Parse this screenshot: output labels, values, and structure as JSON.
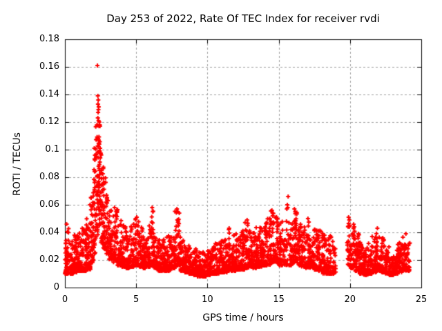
{
  "page": {
    "background": "#ffffff"
  },
  "colors": {
    "marker": "#ff0000",
    "grid": "#9e9e9e",
    "axis": "#000000",
    "text": "#000000"
  },
  "chart_data": {
    "type": "scatter",
    "title": "Day 253 of 2022, Rate Of TEC Index for receiver rvdi",
    "xlabel": "GPS time / hours",
    "ylabel": "ROTI / TECUs",
    "xlim": [
      0,
      25
    ],
    "ylim": [
      0,
      0.18
    ],
    "x_ticks": [
      0,
      5,
      10,
      15,
      20,
      25
    ],
    "x_tick_labels": [
      "0",
      "5",
      "10",
      "15",
      "20",
      "25"
    ],
    "y_ticks": [
      0,
      0.02,
      0.04,
      0.06,
      0.08,
      0.1,
      0.12,
      0.14,
      0.16,
      0.18
    ],
    "y_tick_labels": [
      "0",
      "0.02",
      "0.04",
      "0.06",
      "0.08",
      "0.1",
      "0.12",
      "0.14",
      "0.16",
      "0.18"
    ],
    "grid": true,
    "legend": "none",
    "marker": {
      "shape": "plus",
      "color": "#ff0000",
      "size": 7,
      "stroke": 2
    },
    "series_name": "ROTI",
    "seed": 1337,
    "point_clusters": [
      [
        0.0,
        0.3,
        55,
        0.01,
        0.046,
        2.2
      ],
      [
        0.3,
        0.6,
        48,
        0.01,
        0.04,
        2.2
      ],
      [
        0.6,
        0.9,
        48,
        0.011,
        0.038,
        2.1
      ],
      [
        0.9,
        1.2,
        48,
        0.012,
        0.04,
        2.0
      ],
      [
        1.2,
        1.5,
        48,
        0.012,
        0.044,
        2.0
      ],
      [
        1.5,
        1.8,
        48,
        0.013,
        0.052,
        1.8
      ],
      [
        1.8,
        2.0,
        36,
        0.018,
        0.072,
        1.5
      ],
      [
        2.0,
        2.15,
        30,
        0.024,
        0.098,
        1.3
      ],
      [
        2.15,
        2.3,
        32,
        0.034,
        0.118,
        1.2
      ],
      [
        2.3,
        2.5,
        38,
        0.038,
        0.112,
        1.2
      ],
      [
        2.5,
        2.7,
        34,
        0.032,
        0.1,
        1.3
      ],
      [
        2.7,
        2.9,
        32,
        0.028,
        0.08,
        1.5
      ],
      [
        2.9,
        3.1,
        32,
        0.024,
        0.066,
        1.6
      ],
      [
        3.1,
        3.4,
        38,
        0.02,
        0.056,
        1.7
      ],
      [
        3.4,
        3.7,
        42,
        0.018,
        0.057,
        1.7
      ],
      [
        3.7,
        4.0,
        42,
        0.016,
        0.05,
        1.9
      ],
      [
        4.0,
        4.3,
        42,
        0.015,
        0.046,
        2.0
      ],
      [
        4.3,
        4.6,
        42,
        0.014,
        0.042,
        2.0
      ],
      [
        4.6,
        4.9,
        42,
        0.015,
        0.048,
        1.9
      ],
      [
        4.9,
        5.2,
        42,
        0.016,
        0.051,
        1.8
      ],
      [
        5.2,
        5.5,
        42,
        0.015,
        0.044,
        2.0
      ],
      [
        5.5,
        5.8,
        42,
        0.014,
        0.042,
        2.0
      ],
      [
        5.8,
        6.0,
        30,
        0.015,
        0.045,
        1.9
      ],
      [
        6.0,
        6.25,
        36,
        0.016,
        0.058,
        1.6
      ],
      [
        6.25,
        6.5,
        36,
        0.014,
        0.04,
        2.0
      ],
      [
        6.5,
        6.8,
        42,
        0.012,
        0.035,
        2.1
      ],
      [
        6.8,
        7.1,
        42,
        0.012,
        0.036,
        2.1
      ],
      [
        7.1,
        7.4,
        42,
        0.012,
        0.038,
        2.0
      ],
      [
        7.4,
        7.7,
        42,
        0.014,
        0.042,
        1.9
      ],
      [
        7.7,
        8.1,
        58,
        0.016,
        0.056,
        1.5
      ],
      [
        8.1,
        8.4,
        42,
        0.012,
        0.038,
        2.0
      ],
      [
        8.4,
        8.7,
        42,
        0.011,
        0.032,
        2.2
      ],
      [
        8.7,
        9.0,
        42,
        0.01,
        0.03,
        2.2
      ],
      [
        9.0,
        9.3,
        40,
        0.009,
        0.028,
        2.2
      ],
      [
        9.3,
        9.6,
        40,
        0.008,
        0.026,
        2.2
      ],
      [
        9.6,
        9.9,
        40,
        0.008,
        0.026,
        2.2
      ],
      [
        9.9,
        10.2,
        40,
        0.009,
        0.028,
        2.2
      ],
      [
        10.2,
        10.5,
        40,
        0.01,
        0.03,
        2.2
      ],
      [
        10.5,
        10.8,
        40,
        0.01,
        0.032,
        2.1
      ],
      [
        10.8,
        11.1,
        40,
        0.011,
        0.034,
        2.1
      ],
      [
        11.1,
        11.4,
        40,
        0.011,
        0.036,
        2.0
      ],
      [
        11.4,
        11.7,
        40,
        0.012,
        0.042,
        2.0
      ],
      [
        11.7,
        12.0,
        40,
        0.012,
        0.038,
        2.0
      ],
      [
        12.0,
        12.3,
        40,
        0.013,
        0.04,
        2.0
      ],
      [
        12.3,
        12.6,
        40,
        0.013,
        0.042,
        1.9
      ],
      [
        12.6,
        12.9,
        40,
        0.014,
        0.048,
        1.8
      ],
      [
        12.9,
        13.2,
        40,
        0.015,
        0.046,
        1.8
      ],
      [
        13.2,
        13.5,
        40,
        0.014,
        0.044,
        1.9
      ],
      [
        13.5,
        13.8,
        40,
        0.015,
        0.044,
        1.9
      ],
      [
        13.8,
        14.1,
        40,
        0.016,
        0.048,
        1.8
      ],
      [
        14.1,
        14.4,
        40,
        0.016,
        0.052,
        1.7
      ],
      [
        14.4,
        14.7,
        40,
        0.018,
        0.056,
        1.6
      ],
      [
        14.7,
        15.0,
        40,
        0.018,
        0.052,
        1.7
      ],
      [
        15.0,
        15.3,
        40,
        0.016,
        0.048,
        1.8
      ],
      [
        15.3,
        15.7,
        32,
        0.016,
        0.05,
        1.8
      ],
      [
        15.7,
        16.0,
        36,
        0.016,
        0.048,
        1.8
      ],
      [
        16.0,
        16.3,
        40,
        0.018,
        0.056,
        1.6
      ],
      [
        16.3,
        16.6,
        40,
        0.016,
        0.048,
        1.8
      ],
      [
        16.6,
        16.9,
        40,
        0.015,
        0.046,
        1.8
      ],
      [
        16.9,
        17.2,
        40,
        0.014,
        0.048,
        1.8
      ],
      [
        17.2,
        17.5,
        40,
        0.014,
        0.045,
        1.9
      ],
      [
        17.5,
        17.8,
        40,
        0.013,
        0.044,
        1.9
      ],
      [
        17.8,
        18.1,
        40,
        0.012,
        0.042,
        1.9
      ],
      [
        18.1,
        18.4,
        40,
        0.01,
        0.04,
        2.0
      ],
      [
        18.4,
        18.7,
        40,
        0.01,
        0.038,
        2.0
      ],
      [
        18.7,
        19.0,
        30,
        0.01,
        0.035,
        2.0
      ],
      [
        19.8,
        20.05,
        30,
        0.016,
        0.05,
        1.5
      ],
      [
        20.05,
        20.35,
        38,
        0.014,
        0.046,
        1.8
      ],
      [
        20.35,
        20.65,
        40,
        0.012,
        0.04,
        1.9
      ],
      [
        20.65,
        20.95,
        40,
        0.01,
        0.034,
        2.0
      ],
      [
        20.95,
        21.25,
        40,
        0.009,
        0.031,
        2.1
      ],
      [
        21.25,
        21.55,
        40,
        0.01,
        0.033,
        2.0
      ],
      [
        21.55,
        21.85,
        40,
        0.011,
        0.037,
        1.9
      ],
      [
        21.85,
        22.15,
        40,
        0.012,
        0.04,
        1.9
      ],
      [
        22.15,
        22.45,
        40,
        0.011,
        0.038,
        2.0
      ],
      [
        22.45,
        22.75,
        40,
        0.01,
        0.032,
        2.1
      ],
      [
        22.75,
        23.05,
        40,
        0.009,
        0.028,
        2.1
      ],
      [
        23.05,
        23.35,
        40,
        0.01,
        0.03,
        2.1
      ],
      [
        23.35,
        23.65,
        40,
        0.011,
        0.034,
        2.0
      ],
      [
        23.65,
        23.95,
        40,
        0.012,
        0.037,
        1.9
      ],
      [
        23.95,
        24.2,
        30,
        0.012,
        0.034,
        2.0
      ]
    ],
    "outlier_points": [
      [
        2.28,
        0.161
      ],
      [
        2.31,
        0.139
      ],
      [
        2.34,
        0.136
      ],
      [
        2.32,
        0.133
      ],
      [
        2.37,
        0.131
      ],
      [
        2.35,
        0.129
      ],
      [
        2.33,
        0.127
      ],
      [
        2.31,
        0.123
      ],
      [
        2.36,
        0.121
      ],
      [
        2.41,
        0.12
      ],
      [
        2.44,
        0.118
      ],
      [
        2.39,
        0.117
      ],
      [
        2.46,
        0.117
      ],
      [
        2.33,
        0.108
      ],
      [
        2.41,
        0.104
      ],
      [
        2.47,
        0.101
      ],
      [
        2.44,
        0.099
      ],
      [
        2.51,
        0.097
      ],
      [
        2.48,
        0.094
      ],
      [
        2.45,
        0.091
      ],
      [
        2.36,
        0.088
      ],
      [
        2.43,
        0.085
      ],
      [
        2.53,
        0.083
      ],
      [
        2.57,
        0.079
      ],
      [
        2.62,
        0.075
      ],
      [
        2.66,
        0.071
      ],
      [
        2.92,
        0.067
      ],
      [
        3.02,
        0.063
      ],
      [
        3.48,
        0.058
      ],
      [
        1.76,
        0.06
      ],
      [
        1.84,
        0.065
      ],
      [
        2.06,
        0.101
      ],
      [
        2.11,
        0.096
      ],
      [
        6.12,
        0.058
      ],
      [
        6.17,
        0.055
      ],
      [
        7.86,
        0.057
      ],
      [
        7.92,
        0.055
      ],
      [
        8.02,
        0.054
      ],
      [
        15.66,
        0.066
      ],
      [
        15.6,
        0.06
      ],
      [
        15.63,
        0.058
      ],
      [
        15.57,
        0.057
      ],
      [
        15.54,
        0.048
      ],
      [
        15.72,
        0.047
      ],
      [
        16.1,
        0.057
      ],
      [
        16.16,
        0.055
      ],
      [
        14.52,
        0.056
      ],
      [
        14.57,
        0.054
      ],
      [
        12.78,
        0.049
      ],
      [
        11.52,
        0.043
      ],
      [
        17.05,
        0.05
      ],
      [
        19.9,
        0.051
      ],
      [
        19.95,
        0.049
      ],
      [
        21.92,
        0.043
      ],
      [
        23.92,
        0.039
      ],
      [
        0.12,
        0.046
      ],
      [
        5.04,
        0.051
      ]
    ]
  }
}
